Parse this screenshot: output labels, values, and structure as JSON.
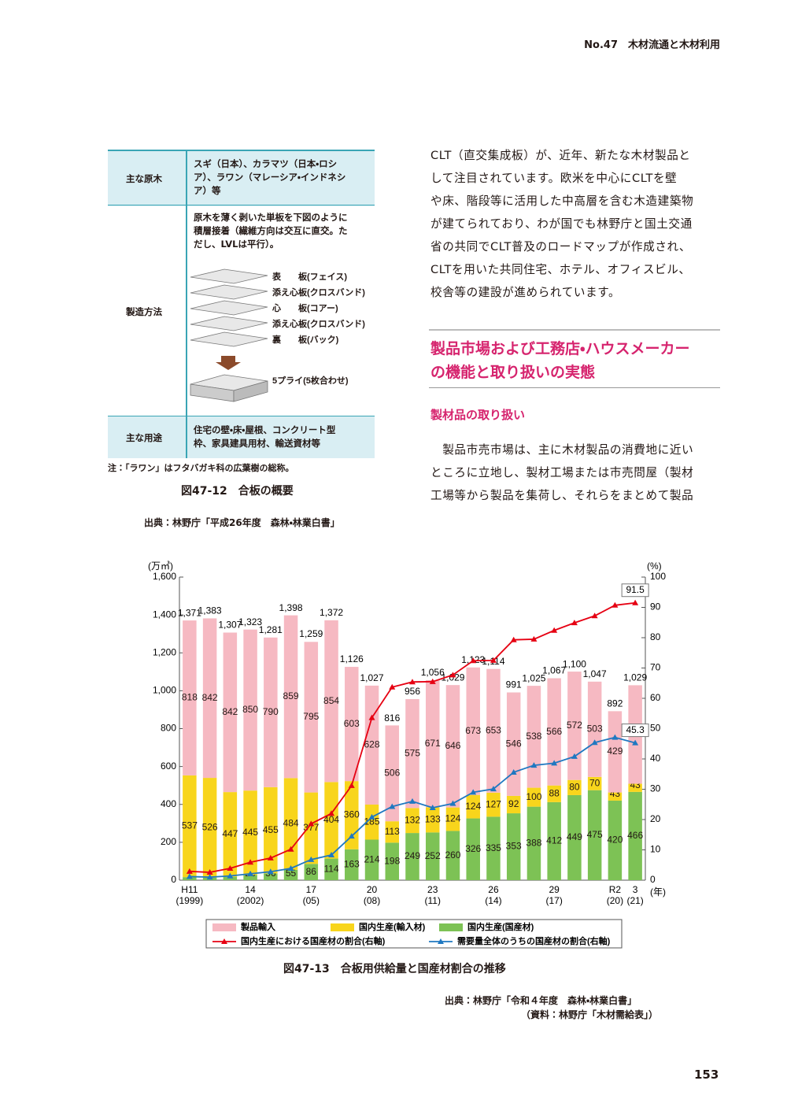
{
  "header": {
    "section": "No.47　木材流通と木材利用"
  },
  "figure_12": {
    "table": {
      "rows": [
        {
          "label": "主な原木",
          "text": [
            "スギ（日本）、カラマツ（日本・ロシ",
            "ア）、ラワン（マレーシア・インドネシ",
            "ア）等"
          ]
        },
        {
          "label": "製造方法",
          "text": [
            "原木を薄く剥いた単板を下図のように",
            "積層接着（繊維方向は交互に直交。た",
            "だし、LVLは平行）。"
          ]
        },
        {
          "label": "主な用途",
          "text": [
            "住宅の壁・床・屋根、コンクリート型",
            "枠、家具建具用材、輸送資材等"
          ]
        }
      ]
    },
    "layers": [
      "表　　板(フェイス)",
      "添え心板(クロスバンド)",
      "心　　板(コアー)",
      "添え心板(クロスバンド)",
      "裏　　板(バック)"
    ],
    "ply": "5プライ(5枚合わせ)",
    "note": "注：「ラワン」はフタバガキ科の広葉樹の総称。",
    "caption": "図47-12　合板の概要",
    "source": "出典：林野庁「平成26年度　森林・林業白書」"
  },
  "body": {
    "paragraph_1": [
      "CLT（直交集成板）が、近年、新たな木材製品と",
      "して注目されています。欧米を中心にCLTを壁",
      "や床、階段等に活用した中高層を含む木造建築物",
      "が建てられており、わが国でも林野庁と国土交通",
      "省の共同でCLT普及のロードマップが作成され、",
      "CLTを用いた共同住宅、ホテル、オフィスビル、",
      "校舎等の建設が進められています。"
    ],
    "heading": [
      "製品市場および工務店・ハウスメーカー",
      "の機能と取り扱いの実態"
    ],
    "subheading": "製材品の取り扱い",
    "paragraph_2": [
      "　製品市売市場は、主に木材製品の消費地に近い",
      "ところに立地し、製材工場または市売問屋（製材",
      "工場等から製品を集荷し、それらをまとめて製品"
    ]
  },
  "chart_data": {
    "type": "bar",
    "y_label": "(万㎥)",
    "y2_label": "(%)",
    "x_label": "(年)",
    "categories": [
      "H11",
      null,
      null,
      "14",
      null,
      null,
      "17",
      null,
      null,
      "20",
      null,
      null,
      "23",
      null,
      null,
      "26",
      null,
      null,
      "29",
      null,
      null,
      "R2",
      "3"
    ],
    "category_sublabels": [
      "(1999)",
      null,
      null,
      "(2002)",
      null,
      null,
      "(05)",
      null,
      null,
      "(08)",
      null,
      null,
      "(11)",
      null,
      null,
      "(14)",
      null,
      null,
      "(17)",
      null,
      null,
      "(20)",
      "(21)"
    ],
    "ylim": [
      0,
      1600
    ],
    "yticks": [
      0,
      200,
      400,
      600,
      800,
      {
        "value": 1000,
        "label": "1,000"
      },
      {
        "value": 1200,
        "label": "1,200"
      },
      {
        "value": 1400,
        "label": "1,400"
      },
      {
        "value": 1600,
        "label": "1,600"
      }
    ],
    "y2lim": [
      0,
      100
    ],
    "y2ticks": [
      0,
      10,
      20,
      30,
      40,
      50,
      60,
      70,
      80,
      90,
      100
    ],
    "grid": false,
    "series": [
      {
        "name": "製品輸入",
        "type": "bar",
        "color": "#f6b9c2",
        "values": [
          818,
          842,
          842,
          850,
          790,
          859,
          795,
          854,
          603,
          628,
          506,
          575,
          671,
          646,
          673,
          653,
          546,
          538,
          566,
          572,
          503,
          429,
          520
        ]
      },
      {
        "name": "国内生産(輸入材)",
        "type": "bar",
        "color": "#f8d51c",
        "values": [
          537,
          526,
          447,
          445,
          455,
          484,
          377,
          404,
          360,
          185,
          113,
          132,
          133,
          124,
          124,
          127,
          92,
          100,
          88,
          80,
          70,
          43,
          43
        ]
      },
      {
        "name": "国内生産(国産材)",
        "type": "bar",
        "color": "#7dc255",
        "values": [
          16,
          14,
          18,
          28,
          36,
          55,
          86,
          114,
          163,
          214,
          198,
          249,
          252,
          260,
          326,
          335,
          353,
          388,
          412,
          449,
          475,
          420,
          466
        ]
      },
      {
        "name": "国内生産における国産材の割合(右軸)",
        "type": "line",
        "axis": "y2",
        "color": "#e60012",
        "label_last": true,
        "values": [
          2.9,
          2.6,
          3.9,
          5.9,
          7.3,
          10.2,
          18.6,
          22.0,
          31.2,
          53.6,
          63.7,
          65.4,
          65.5,
          67.7,
          72.4,
          72.5,
          79.3,
          79.5,
          82.4,
          84.9,
          87.2,
          90.7,
          91.5
        ]
      },
      {
        "name": "需要量全体のうちの国産材の割合(右軸)",
        "type": "line",
        "axis": "y2",
        "color": "#1f78c1",
        "label_last": true,
        "values": [
          1.2,
          1.0,
          1.4,
          2.1,
          2.8,
          3.9,
          6.8,
          8.3,
          14.5,
          20.8,
          24.3,
          26.0,
          23.9,
          25.3,
          29.0,
          30.1,
          35.6,
          37.9,
          38.6,
          40.8,
          45.4,
          47.1,
          45.3
        ]
      }
    ],
    "totals": [
      {
        "value": 1371,
        "label": "1,371"
      },
      {
        "value": 1383,
        "label": "1,383"
      },
      {
        "value": 1307,
        "label": "1,307"
      },
      {
        "value": 1323,
        "label": "1,323"
      },
      {
        "value": 1281,
        "label": "1,281"
      },
      {
        "value": 1398,
        "label": "1,398"
      },
      {
        "value": 1259,
        "label": "1,259"
      },
      {
        "value": 1372,
        "label": "1,372"
      },
      {
        "value": 1126,
        "label": "1,126"
      },
      {
        "value": 1027,
        "label": "1,027"
      },
      816,
      956,
      {
        "value": 1056,
        "label": "1,056"
      },
      {
        "value": 1029,
        "label": "1,029"
      },
      {
        "value": 1123,
        "label": "1,123"
      },
      {
        "value": 1114,
        "label": "1,114"
      },
      991,
      {
        "value": 1025,
        "label": "1,025"
      },
      {
        "value": 1067,
        "label": "1,067"
      },
      {
        "value": 1100,
        "label": "1,100"
      },
      {
        "value": 1047,
        "label": "1,047"
      },
      892,
      {
        "value": 1029,
        "label": "1,029"
      }
    ]
  },
  "figure_13": {
    "caption": "図47-13　合板用供給量と国産材割合の推移",
    "source": [
      "出典：林野庁「令和４年度　森林・林業白書」",
      "（資料：林野庁「木材需給表」）"
    ]
  },
  "page_number": "153"
}
